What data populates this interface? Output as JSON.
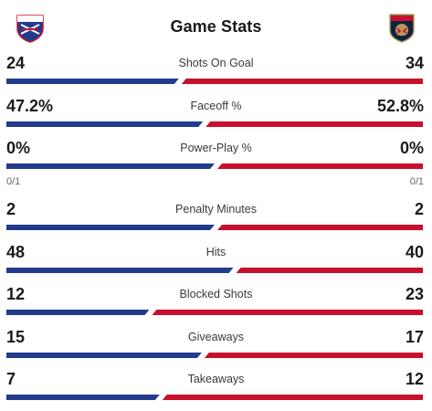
{
  "header": {
    "title": "Game Stats",
    "home_logo_icon": "new-york-rangers-logo-icon",
    "home_logo_text": "NEW YORK RANGERS",
    "away_logo_icon": "florida-panthers-logo-icon",
    "away_logo_text": "FLORIDA"
  },
  "colors": {
    "home": "#233b8c",
    "away": "#c8102e"
  },
  "stats": [
    {
      "label": "Shots On Goal",
      "home": "24",
      "away": "34",
      "home_share": 0.414
    },
    {
      "label": "Faceoff %",
      "home": "47.2%",
      "away": "52.8%",
      "home_share": 0.472
    },
    {
      "label": "Power-Play %",
      "home": "0%",
      "away": "0%",
      "home_share": 0.5,
      "home_sub": "0/1",
      "away_sub": "0/1"
    },
    {
      "label": "Penalty Minutes",
      "home": "2",
      "away": "2",
      "home_share": 0.5
    },
    {
      "label": "Hits",
      "home": "48",
      "away": "40",
      "home_share": 0.545
    },
    {
      "label": "Blocked Shots",
      "home": "12",
      "away": "23",
      "home_share": 0.343
    },
    {
      "label": "Giveaways",
      "home": "15",
      "away": "17",
      "home_share": 0.469
    },
    {
      "label": "Takeaways",
      "home": "7",
      "away": "12",
      "home_share": 0.368
    }
  ]
}
